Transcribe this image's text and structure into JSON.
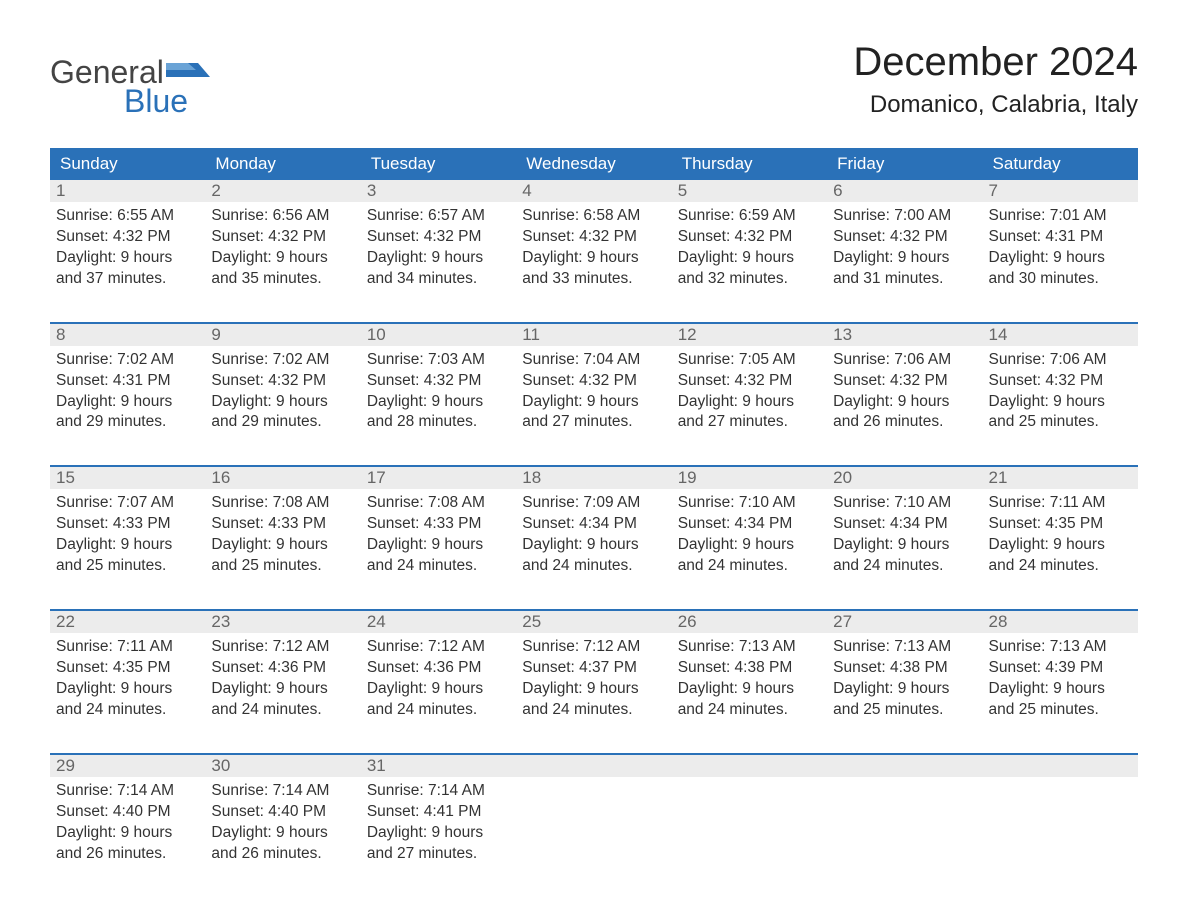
{
  "logo": {
    "general": "General",
    "blue": "Blue"
  },
  "title": "December 2024",
  "location": "Domanico, Calabria, Italy",
  "colors": {
    "header_bg": "#2a71b8",
    "header_text": "#ffffff",
    "daynum_bg": "#ececec",
    "daynum_text": "#666666",
    "body_text": "#333333",
    "page_bg": "#ffffff",
    "week_border": "#2a71b8"
  },
  "typography": {
    "title_fontsize": 40,
    "location_fontsize": 24,
    "header_fontsize": 17,
    "body_fontsize": 15.5
  },
  "day_names": [
    "Sunday",
    "Monday",
    "Tuesday",
    "Wednesday",
    "Thursday",
    "Friday",
    "Saturday"
  ],
  "labels": {
    "sunrise": "Sunrise:",
    "sunset": "Sunset:",
    "daylight_prefix": "Daylight:"
  },
  "weeks": [
    [
      {
        "day": "1",
        "sunrise": "6:55 AM",
        "sunset": "4:32 PM",
        "daylight": "9 hours and 37 minutes."
      },
      {
        "day": "2",
        "sunrise": "6:56 AM",
        "sunset": "4:32 PM",
        "daylight": "9 hours and 35 minutes."
      },
      {
        "day": "3",
        "sunrise": "6:57 AM",
        "sunset": "4:32 PM",
        "daylight": "9 hours and 34 minutes."
      },
      {
        "day": "4",
        "sunrise": "6:58 AM",
        "sunset": "4:32 PM",
        "daylight": "9 hours and 33 minutes."
      },
      {
        "day": "5",
        "sunrise": "6:59 AM",
        "sunset": "4:32 PM",
        "daylight": "9 hours and 32 minutes."
      },
      {
        "day": "6",
        "sunrise": "7:00 AM",
        "sunset": "4:32 PM",
        "daylight": "9 hours and 31 minutes."
      },
      {
        "day": "7",
        "sunrise": "7:01 AM",
        "sunset": "4:31 PM",
        "daylight": "9 hours and 30 minutes."
      }
    ],
    [
      {
        "day": "8",
        "sunrise": "7:02 AM",
        "sunset": "4:31 PM",
        "daylight": "9 hours and 29 minutes."
      },
      {
        "day": "9",
        "sunrise": "7:02 AM",
        "sunset": "4:32 PM",
        "daylight": "9 hours and 29 minutes."
      },
      {
        "day": "10",
        "sunrise": "7:03 AM",
        "sunset": "4:32 PM",
        "daylight": "9 hours and 28 minutes."
      },
      {
        "day": "11",
        "sunrise": "7:04 AM",
        "sunset": "4:32 PM",
        "daylight": "9 hours and 27 minutes."
      },
      {
        "day": "12",
        "sunrise": "7:05 AM",
        "sunset": "4:32 PM",
        "daylight": "9 hours and 27 minutes."
      },
      {
        "day": "13",
        "sunrise": "7:06 AM",
        "sunset": "4:32 PM",
        "daylight": "9 hours and 26 minutes."
      },
      {
        "day": "14",
        "sunrise": "7:06 AM",
        "sunset": "4:32 PM",
        "daylight": "9 hours and 25 minutes."
      }
    ],
    [
      {
        "day": "15",
        "sunrise": "7:07 AM",
        "sunset": "4:33 PM",
        "daylight": "9 hours and 25 minutes."
      },
      {
        "day": "16",
        "sunrise": "7:08 AM",
        "sunset": "4:33 PM",
        "daylight": "9 hours and 25 minutes."
      },
      {
        "day": "17",
        "sunrise": "7:08 AM",
        "sunset": "4:33 PM",
        "daylight": "9 hours and 24 minutes."
      },
      {
        "day": "18",
        "sunrise": "7:09 AM",
        "sunset": "4:34 PM",
        "daylight": "9 hours and 24 minutes."
      },
      {
        "day": "19",
        "sunrise": "7:10 AM",
        "sunset": "4:34 PM",
        "daylight": "9 hours and 24 minutes."
      },
      {
        "day": "20",
        "sunrise": "7:10 AM",
        "sunset": "4:34 PM",
        "daylight": "9 hours and 24 minutes."
      },
      {
        "day": "21",
        "sunrise": "7:11 AM",
        "sunset": "4:35 PM",
        "daylight": "9 hours and 24 minutes."
      }
    ],
    [
      {
        "day": "22",
        "sunrise": "7:11 AM",
        "sunset": "4:35 PM",
        "daylight": "9 hours and 24 minutes."
      },
      {
        "day": "23",
        "sunrise": "7:12 AM",
        "sunset": "4:36 PM",
        "daylight": "9 hours and 24 minutes."
      },
      {
        "day": "24",
        "sunrise": "7:12 AM",
        "sunset": "4:36 PM",
        "daylight": "9 hours and 24 minutes."
      },
      {
        "day": "25",
        "sunrise": "7:12 AM",
        "sunset": "4:37 PM",
        "daylight": "9 hours and 24 minutes."
      },
      {
        "day": "26",
        "sunrise": "7:13 AM",
        "sunset": "4:38 PM",
        "daylight": "9 hours and 24 minutes."
      },
      {
        "day": "27",
        "sunrise": "7:13 AM",
        "sunset": "4:38 PM",
        "daylight": "9 hours and 25 minutes."
      },
      {
        "day": "28",
        "sunrise": "7:13 AM",
        "sunset": "4:39 PM",
        "daylight": "9 hours and 25 minutes."
      }
    ],
    [
      {
        "day": "29",
        "sunrise": "7:14 AM",
        "sunset": "4:40 PM",
        "daylight": "9 hours and 26 minutes."
      },
      {
        "day": "30",
        "sunrise": "7:14 AM",
        "sunset": "4:40 PM",
        "daylight": "9 hours and 26 minutes."
      },
      {
        "day": "31",
        "sunrise": "7:14 AM",
        "sunset": "4:41 PM",
        "daylight": "9 hours and 27 minutes."
      },
      null,
      null,
      null,
      null
    ]
  ]
}
